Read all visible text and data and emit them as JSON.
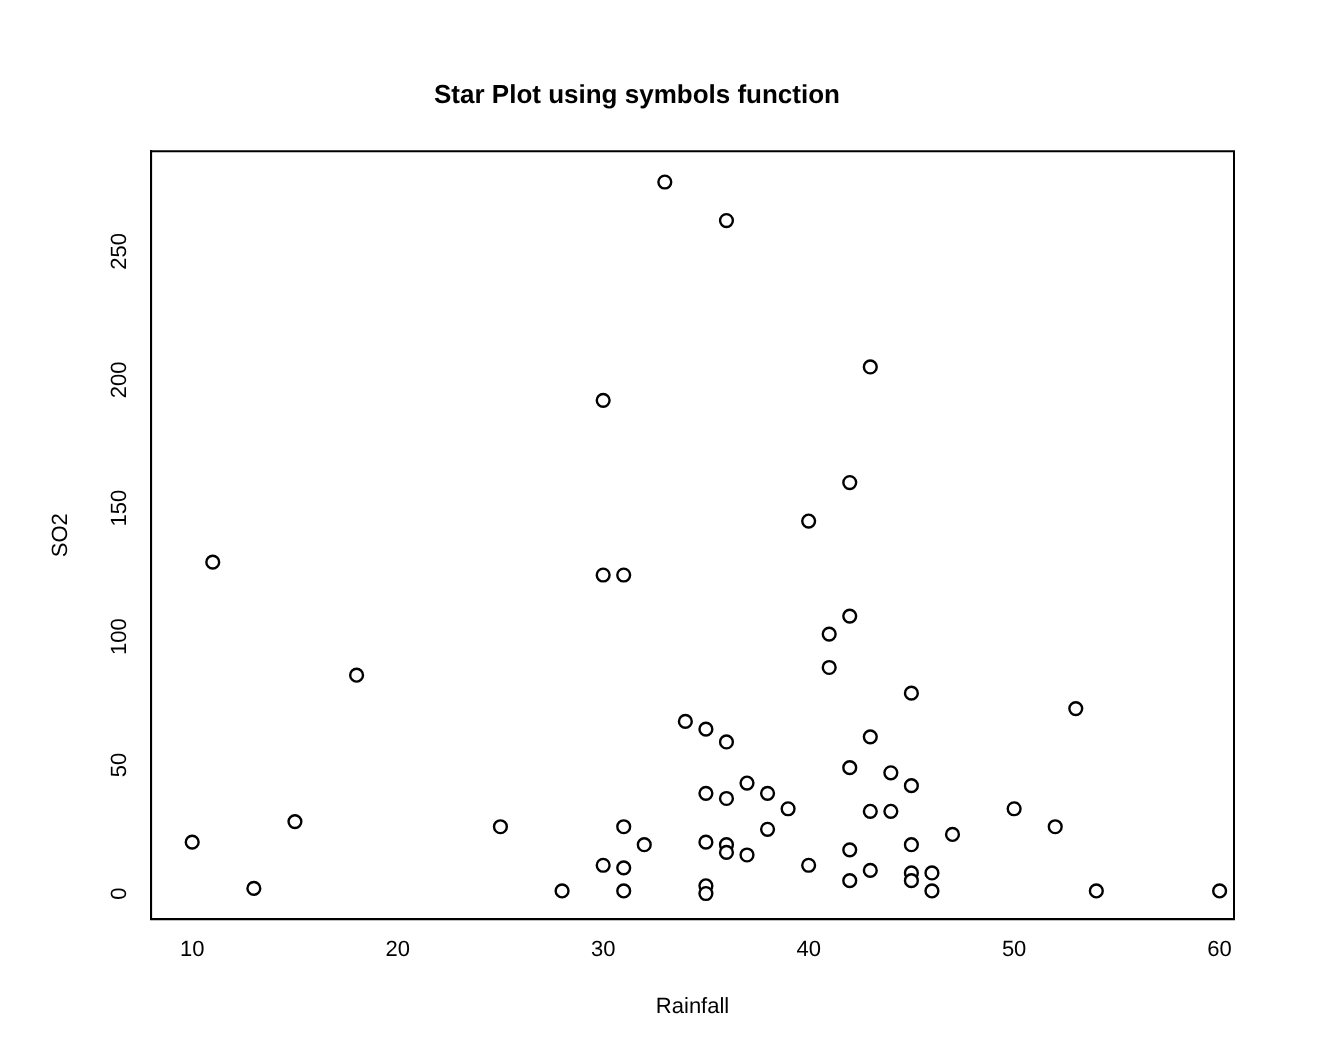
{
  "chart_data": {
    "type": "scatter",
    "title": "Star Plot using symbols function",
    "xlabel": "Rainfall",
    "ylabel": "SO2",
    "x": [
      10,
      11,
      13,
      15,
      18,
      25,
      28,
      30,
      30,
      31,
      30,
      31,
      31,
      31,
      32,
      33,
      34,
      35,
      35,
      35,
      35,
      35,
      36,
      36,
      36,
      36,
      36,
      37,
      37,
      38,
      38,
      39,
      40,
      40,
      41,
      41,
      42,
      42,
      42,
      42,
      42,
      43,
      43,
      43,
      43,
      44,
      44,
      45,
      45,
      45,
      45,
      45,
      46,
      46,
      47,
      50,
      52,
      53,
      54,
      60
    ],
    "values": [
      20,
      129,
      2,
      28,
      85,
      26,
      1,
      192,
      124,
      124,
      11,
      26,
      10,
      1,
      19,
      277,
      67,
      64,
      39,
      20,
      3,
      0,
      262,
      59,
      37,
      19,
      16,
      43,
      15,
      39,
      25,
      33,
      11,
      145,
      101,
      88,
      160,
      108,
      49,
      17,
      5,
      205,
      61,
      32,
      9,
      47,
      32,
      78,
      42,
      19,
      8,
      5,
      8,
      1,
      23,
      33,
      26,
      72,
      1,
      1
    ],
    "color": "#000000",
    "marker": "circle",
    "grid": false,
    "legend": false,
    "xlim": [
      8,
      60.7
    ],
    "ylim": [
      -10,
      289
    ],
    "xticks": [
      10,
      20,
      30,
      40,
      50,
      60
    ],
    "yticks": [
      0,
      50,
      100,
      150,
      200,
      250
    ]
  }
}
